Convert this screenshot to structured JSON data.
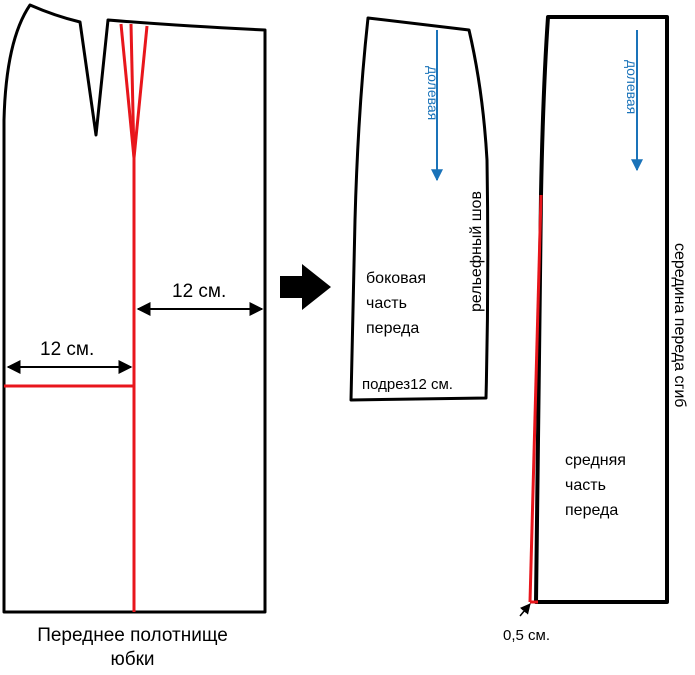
{
  "colors": {
    "outline": "#000000",
    "modification": "#e8161c",
    "grain": "#1a73b9"
  },
  "front_panel": {
    "measure_left": "12 см.",
    "measure_right": "12 см.",
    "caption_line1": "Переднее полотнище",
    "caption_line2": "юбки"
  },
  "side_piece": {
    "grain": "долевая",
    "seam": "рельефный шов",
    "name_line1": "боковая",
    "name_line2": "часть",
    "name_line3": "переда",
    "bottom_note": "подрез12 см."
  },
  "middle_piece": {
    "grain": "долевая",
    "fold": "середина переда сгиб",
    "name_line1": "средняя",
    "name_line2": "часть",
    "name_line3": "переда",
    "offset_note": "0,5 см."
  },
  "icons": {
    "transform_arrow": "arrow-right-icon"
  }
}
